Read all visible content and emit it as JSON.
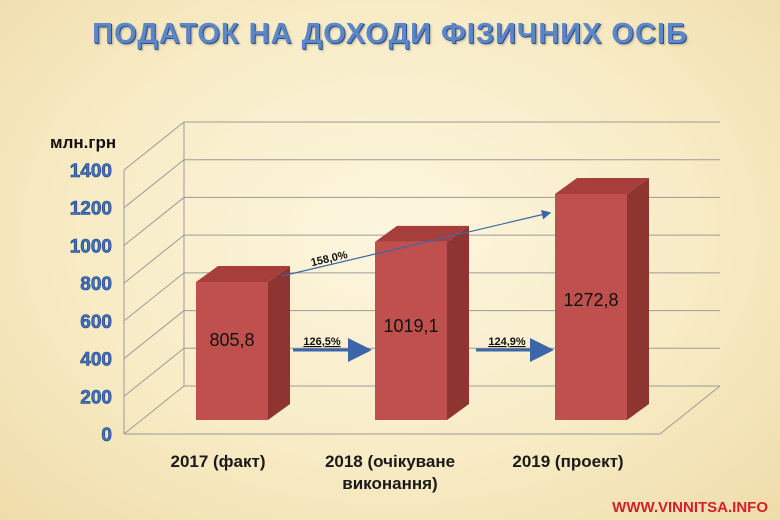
{
  "title": "ПОДАТОК НА ДОХОДИ ФІЗИЧНИХ ОСІБ",
  "watermark": "WWW.VINNITSA.INFO",
  "chart_data": {
    "type": "bar",
    "title": "ПОДАТОК НА ДОХОДИ ФІЗИЧНИХ ОСІБ",
    "ylabel": "млн.грн",
    "ylim": [
      0,
      1400
    ],
    "yticks": [
      0,
      200,
      400,
      600,
      800,
      1000,
      1200,
      1400
    ],
    "categories": [
      [
        "2017 (факт)"
      ],
      [
        "2018 (очікуване",
        "виконання)"
      ],
      [
        "2019 (проект)"
      ]
    ],
    "values": [
      805.8,
      1019.1,
      1272.8
    ],
    "value_labels": [
      "805,8",
      "1019,1",
      "1272,8"
    ],
    "grid": true,
    "style": "3d-column",
    "bar_color": "#c0504d",
    "tick_color": "#3f73c4",
    "annotations": [
      {
        "text": "126,5%",
        "from": 0,
        "to": 1
      },
      {
        "text": "124,9%",
        "from": 1,
        "to": 2
      },
      {
        "text": "158,0%",
        "from": 0,
        "to": 2
      }
    ]
  }
}
